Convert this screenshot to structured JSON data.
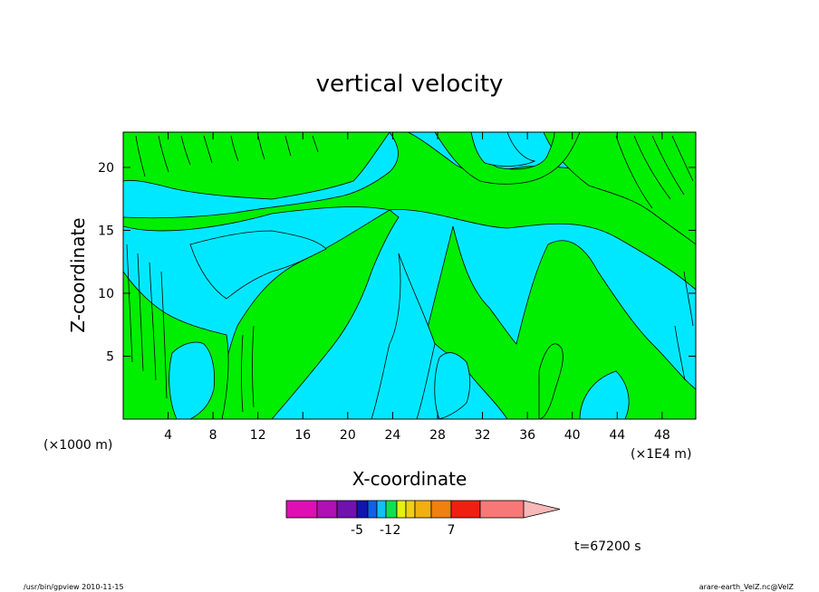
{
  "chart_data": {
    "type": "heatmap",
    "title": "vertical velocity",
    "xlabel": "X-coordinate",
    "ylabel": "Z-coordinate",
    "x_unit_left": "(×1000 m)",
    "x_unit_right": "(×1E4 m)",
    "xlim": [
      0,
      51
    ],
    "ylim": [
      0,
      22.8
    ],
    "x_ticks": [
      4,
      8,
      12,
      16,
      20,
      24,
      28,
      32,
      36,
      40,
      44,
      48
    ],
    "y_ticks": [
      5,
      10,
      15,
      20
    ],
    "time_label": "t=67200 s",
    "colorbar": {
      "colors": [
        "#e00fb4",
        "#b010b4",
        "#7011b0",
        "#1015b0",
        "#1060e8",
        "#10c0f8",
        "#10e050",
        "#e8f010",
        "#f0d010",
        "#f0b010",
        "#f08010",
        "#f02010",
        "#f87878",
        "#f8b8b8"
      ],
      "tick_labels": [
        "-5",
        "-1",
        "2",
        "7"
      ]
    },
    "field_colors": {
      "background": "#00e8ff",
      "positive": "#00ee00",
      "contour": "#000000"
    }
  },
  "footer": {
    "left": "/usr/bin/gpview   2010-11-15",
    "right": "arare-earth_VelZ.nc@VelZ"
  }
}
